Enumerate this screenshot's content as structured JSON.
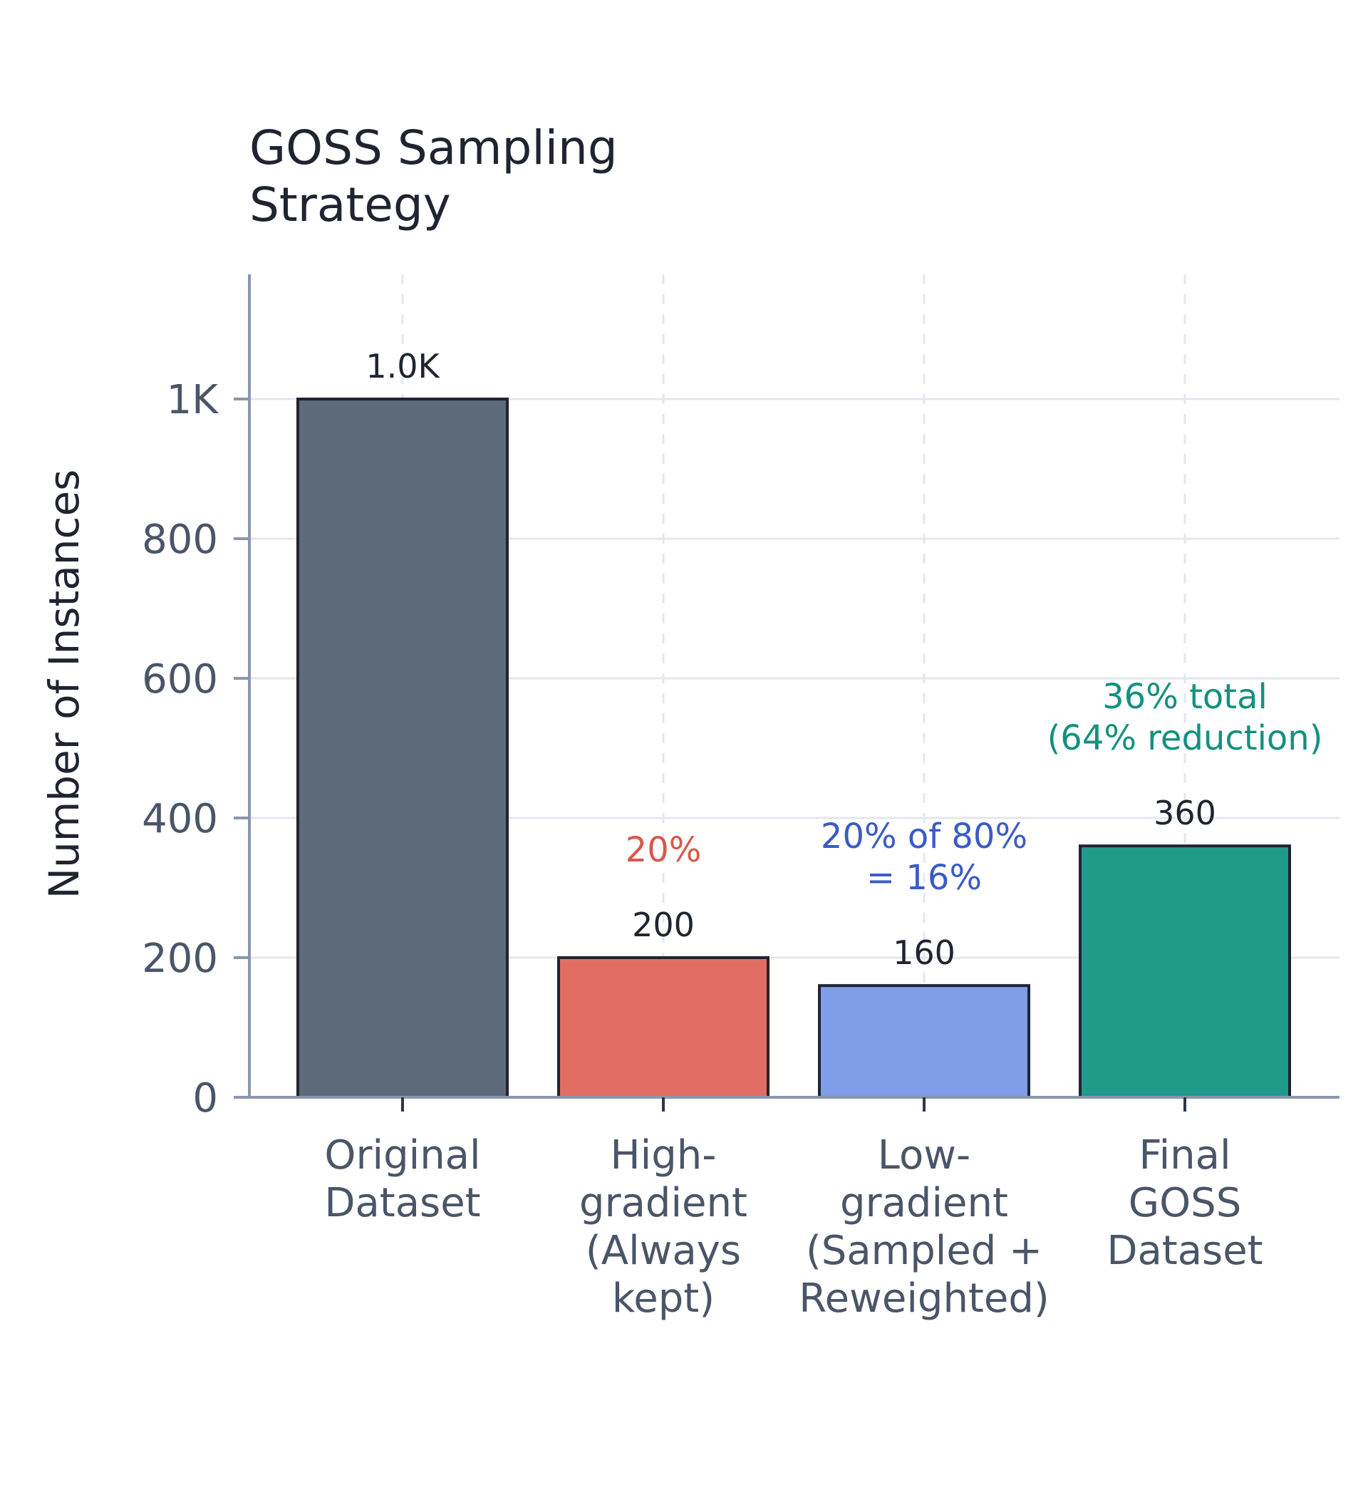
{
  "chart_data": {
    "type": "bar",
    "title": [
      "GOSS Sampling",
      "Strategy"
    ],
    "ylabel": "Number of Instances",
    "xlabel": "",
    "ylim": [
      0,
      1150
    ],
    "yticks": [
      {
        "value": 0,
        "label": "0"
      },
      {
        "value": 200,
        "label": "200"
      },
      {
        "value": 400,
        "label": "400"
      },
      {
        "value": 600,
        "label": "600"
      },
      {
        "value": 800,
        "label": "800"
      },
      {
        "value": 1000,
        "label": "1K"
      }
    ],
    "grid": "on",
    "categories": [
      [
        "Original",
        "Dataset"
      ],
      [
        "High-",
        "gradient",
        "(Always",
        "kept)"
      ],
      [
        "Low-",
        "gradient",
        "(Sampled +",
        "Reweighted)"
      ],
      [
        "Final",
        "GOSS",
        "Dataset"
      ]
    ],
    "values": [
      1000,
      200,
      160,
      360
    ],
    "value_labels": [
      "1.0K",
      "200",
      "160",
      "360"
    ],
    "colors": [
      "#5c6a7a",
      "#e26e63",
      "#7f9de8",
      "#209a8a"
    ],
    "annotations": [
      {
        "category_index": 1,
        "lines": [
          "20%"
        ],
        "color": "#d9574c"
      },
      {
        "category_index": 2,
        "lines": [
          "20% of 80%",
          "= 16%"
        ],
        "color": "#3a5bc7"
      },
      {
        "category_index": 3,
        "lines": [
          "36% total",
          "(64% reduction)"
        ],
        "color": "#12917e"
      }
    ]
  }
}
